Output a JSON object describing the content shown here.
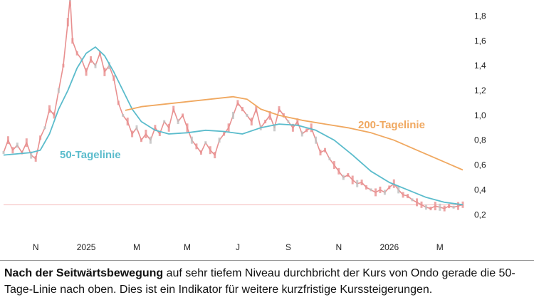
{
  "chart_data": {
    "type": "line",
    "title": "",
    "xlabel": "",
    "ylabel": "",
    "ylim": [
      0.15,
      1.9
    ],
    "y_ticks": [
      "1,8",
      "1,6",
      "1,4",
      "1,2",
      "1,0",
      "0,8",
      "0,6",
      "0,4",
      "0,2"
    ],
    "y_tick_values": [
      1.8,
      1.6,
      1.4,
      1.2,
      1.0,
      0.8,
      0.6,
      0.4,
      0.2
    ],
    "x_ticks": [
      "N",
      "2025",
      "M",
      "M",
      "J",
      "S",
      "N",
      "2026",
      "M"
    ],
    "x_tick_positions": [
      0.07,
      0.18,
      0.29,
      0.4,
      0.51,
      0.62,
      0.73,
      0.84,
      0.95
    ],
    "grid": false,
    "reference_line": 0.28,
    "series": [
      {
        "name": "Kurs",
        "color": "#e89090",
        "x": [
          0.0,
          0.01,
          0.02,
          0.03,
          0.04,
          0.05,
          0.06,
          0.07,
          0.08,
          0.09,
          0.1,
          0.11,
          0.12,
          0.13,
          0.14,
          0.145,
          0.15,
          0.16,
          0.17,
          0.18,
          0.19,
          0.2,
          0.21,
          0.22,
          0.23,
          0.24,
          0.25,
          0.26,
          0.27,
          0.28,
          0.29,
          0.3,
          0.31,
          0.32,
          0.33,
          0.34,
          0.35,
          0.36,
          0.37,
          0.38,
          0.39,
          0.4,
          0.41,
          0.42,
          0.43,
          0.44,
          0.45,
          0.46,
          0.47,
          0.48,
          0.49,
          0.5,
          0.51,
          0.52,
          0.53,
          0.54,
          0.55,
          0.56,
          0.57,
          0.58,
          0.59,
          0.6,
          0.61,
          0.62,
          0.63,
          0.64,
          0.65,
          0.66,
          0.67,
          0.68,
          0.69,
          0.7,
          0.71,
          0.72,
          0.73,
          0.74,
          0.75,
          0.76,
          0.77,
          0.78,
          0.79,
          0.8,
          0.81,
          0.82,
          0.83,
          0.84,
          0.85,
          0.86,
          0.87,
          0.88,
          0.89,
          0.9,
          0.91,
          0.92,
          0.93,
          0.94,
          0.95,
          0.96,
          0.97,
          0.98,
          0.99,
          1.0
        ],
        "values": [
          0.7,
          0.8,
          0.72,
          0.76,
          0.7,
          0.78,
          0.68,
          0.65,
          0.82,
          0.9,
          1.05,
          1.0,
          1.2,
          1.4,
          1.75,
          1.95,
          1.6,
          1.5,
          1.45,
          1.35,
          1.45,
          1.4,
          1.5,
          1.35,
          1.4,
          1.3,
          1.1,
          1.0,
          0.95,
          0.85,
          0.9,
          0.8,
          0.85,
          0.8,
          0.9,
          0.85,
          0.95,
          0.9,
          1.05,
          0.95,
          1.0,
          0.9,
          0.8,
          0.75,
          0.7,
          0.78,
          0.72,
          0.68,
          0.8,
          0.85,
          0.9,
          1.0,
          1.1,
          1.05,
          1.0,
          0.95,
          1.05,
          0.9,
          0.95,
          1.0,
          0.9,
          1.05,
          1.0,
          0.95,
          0.9,
          0.95,
          0.85,
          0.88,
          0.9,
          0.8,
          0.7,
          0.72,
          0.65,
          0.6,
          0.55,
          0.5,
          0.52,
          0.48,
          0.45,
          0.46,
          0.42,
          0.4,
          0.38,
          0.4,
          0.38,
          0.42,
          0.45,
          0.4,
          0.36,
          0.35,
          0.32,
          0.3,
          0.28,
          0.26,
          0.25,
          0.27,
          0.26,
          0.25,
          0.27,
          0.26,
          0.27,
          0.28
        ]
      },
      {
        "name": "50-Tagelinie",
        "color": "#5bbccc",
        "x": [
          0.0,
          0.03,
          0.06,
          0.08,
          0.1,
          0.12,
          0.14,
          0.16,
          0.18,
          0.2,
          0.22,
          0.24,
          0.26,
          0.28,
          0.3,
          0.33,
          0.36,
          0.4,
          0.44,
          0.48,
          0.52,
          0.56,
          0.6,
          0.64,
          0.68,
          0.72,
          0.76,
          0.8,
          0.84,
          0.88,
          0.92,
          0.96,
          1.0
        ],
        "values": [
          0.68,
          0.69,
          0.7,
          0.72,
          0.85,
          1.05,
          1.2,
          1.38,
          1.5,
          1.55,
          1.48,
          1.35,
          1.2,
          1.05,
          0.95,
          0.88,
          0.85,
          0.86,
          0.88,
          0.87,
          0.85,
          0.9,
          0.93,
          0.92,
          0.88,
          0.8,
          0.68,
          0.55,
          0.46,
          0.4,
          0.34,
          0.3,
          0.28
        ]
      },
      {
        "name": "200-Tagelinie",
        "color": "#f0a860",
        "x": [
          0.265,
          0.3,
          0.35,
          0.4,
          0.45,
          0.5,
          0.53,
          0.56,
          0.6,
          0.65,
          0.7,
          0.75,
          0.8,
          0.85,
          0.9,
          0.95,
          1.0
        ],
        "values": [
          1.04,
          1.07,
          1.09,
          1.11,
          1.13,
          1.15,
          1.13,
          1.05,
          1.0,
          0.96,
          0.93,
          0.9,
          0.86,
          0.8,
          0.72,
          0.64,
          0.56
        ]
      }
    ]
  },
  "labels": {
    "ma200": "200-Tagelinie",
    "ma50": "50-Tagelinie"
  },
  "caption": {
    "bold": "Nach der Seitwärtsbewegung",
    "rest": " auf sehr tiefem Niveau durchbricht der Kurs von Ondo gerade die 50-Tage-Linie nach oben. Dies ist ein Indikator für weitere kurzfristige Kurssteigerungen."
  }
}
